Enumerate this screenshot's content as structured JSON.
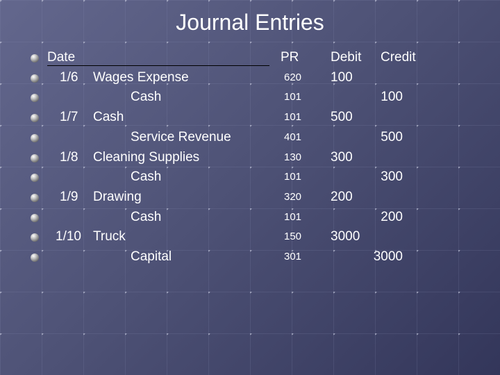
{
  "title": "Journal Entries",
  "headers": {
    "date": "Date",
    "pr": "PR",
    "debit": "Debit",
    "credit": "Credit"
  },
  "entries": [
    {
      "date": "1/6",
      "account": "Wages Expense",
      "indent": false,
      "pr": "620",
      "debit": "100",
      "credit": ""
    },
    {
      "date": "",
      "account": "Cash",
      "indent": true,
      "pr": "101",
      "debit": "",
      "credit": "100"
    },
    {
      "date": "1/7",
      "account": "Cash",
      "indent": false,
      "pr": "101",
      "debit": "500",
      "credit": ""
    },
    {
      "date": "",
      "account": "Service Revenue",
      "indent": true,
      "pr": "401",
      "debit": "",
      "credit": "500"
    },
    {
      "date": "1/8",
      "account": "Cleaning Supplies",
      "indent": false,
      "pr": "130",
      "debit": "300",
      "credit": ""
    },
    {
      "date": "",
      "account": "Cash",
      "indent": true,
      "pr": "101",
      "debit": "",
      "credit": "300"
    },
    {
      "date": "1/9",
      "account": "Drawing",
      "indent": false,
      "pr": "320",
      "debit": "200",
      "credit": ""
    },
    {
      "date": "",
      "account": "Cash",
      "indent": true,
      "pr": "101",
      "debit": "",
      "credit": "200"
    },
    {
      "date": "1/10",
      "account": "Truck",
      "indent": false,
      "pr": "150",
      "debit": "3000",
      "credit": ""
    },
    {
      "date": "",
      "account": "Capital",
      "indent": true,
      "pr": "301",
      "debit": "",
      "credit": "3000"
    }
  ]
}
